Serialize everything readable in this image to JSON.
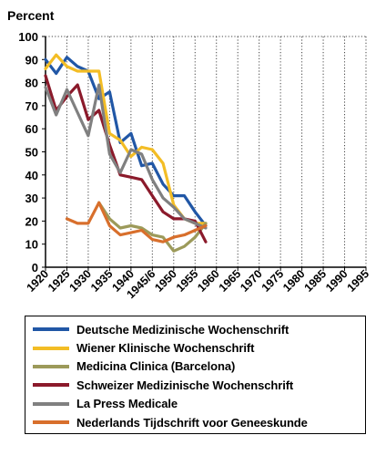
{
  "chart_data": {
    "type": "line",
    "ylabel": "Percent",
    "ylim": [
      0,
      100
    ],
    "y_ticks": [
      "0",
      "10",
      "20",
      "30",
      "40",
      "50",
      "60",
      "70",
      "80",
      "90",
      "100"
    ],
    "x": [
      1920,
      1925,
      1930,
      1935,
      1940,
      1945,
      1950,
      1955,
      1960,
      1965,
      1970,
      1975,
      1980,
      1985,
      1990,
      1995
    ],
    "x_tick_labels": [
      "1920",
      "1925",
      "1930",
      "1935",
      "1940",
      "1945/6",
      "1950",
      "1955",
      "1960",
      "1965",
      "1970",
      "1975",
      "1980",
      "1985",
      "1990",
      "1995"
    ],
    "grid": "vertical dotted",
    "legend_position": "bottom",
    "series": [
      {
        "name": "Deutsche Medizinische Wochenschrift",
        "color": "#2157a6",
        "points": [
          [
            1920,
            90
          ],
          [
            1922.5,
            84
          ],
          [
            1925,
            91
          ],
          [
            1927.5,
            87
          ],
          [
            1930,
            85
          ],
          [
            1932.5,
            73
          ],
          [
            1935,
            76
          ],
          [
            1937.5,
            54
          ],
          [
            1940,
            58
          ],
          [
            1942.5,
            44
          ],
          [
            1945,
            45
          ],
          [
            1947.5,
            36
          ],
          [
            1950,
            31
          ],
          [
            1952.5,
            31
          ],
          [
            1955,
            24
          ],
          [
            1957.5,
            18
          ]
        ]
      },
      {
        "name": "Wiener Klinische Wochenschrift",
        "color": "#f3bd25",
        "points": [
          [
            1920,
            86
          ],
          [
            1922.5,
            92
          ],
          [
            1925,
            87
          ],
          [
            1927.5,
            85
          ],
          [
            1930,
            85
          ],
          [
            1932.5,
            85
          ],
          [
            1935,
            58
          ],
          [
            1937.5,
            55
          ],
          [
            1940,
            48
          ],
          [
            1942.5,
            52
          ],
          [
            1945,
            51
          ],
          [
            1947.5,
            45
          ],
          [
            1950,
            27
          ],
          [
            1952.5,
            21
          ],
          [
            1955,
            19
          ],
          [
            1957.5,
            19
          ]
        ]
      },
      {
        "name": "Medicina Clinica (Barcelona)",
        "color": "#9c9a5a",
        "points": [
          [
            1932.5,
            28
          ],
          [
            1935,
            21
          ],
          [
            1937.5,
            17
          ],
          [
            1940,
            18
          ],
          [
            1942.5,
            17
          ],
          [
            1945,
            14
          ],
          [
            1947.5,
            13
          ],
          [
            1950,
            7
          ],
          [
            1952.5,
            9
          ],
          [
            1955,
            13
          ],
          [
            1957.5,
            19
          ]
        ]
      },
      {
        "name": "Schweizer Medizinische Wochenschrift",
        "color": "#8b1a2b",
        "points": [
          [
            1920,
            83
          ],
          [
            1922.5,
            68
          ],
          [
            1925,
            74
          ],
          [
            1927.5,
            79
          ],
          [
            1930,
            64
          ],
          [
            1932.5,
            68
          ],
          [
            1935,
            53
          ],
          [
            1937.5,
            40
          ],
          [
            1940,
            39
          ],
          [
            1942.5,
            38
          ],
          [
            1945,
            31
          ],
          [
            1947.5,
            24
          ],
          [
            1950,
            21
          ],
          [
            1952.5,
            21
          ],
          [
            1955,
            20
          ],
          [
            1957.5,
            11
          ]
        ]
      },
      {
        "name": "La Press Medicale",
        "color": "#808080",
        "points": [
          [
            1920,
            78
          ],
          [
            1922.5,
            66
          ],
          [
            1925,
            77
          ],
          [
            1927.5,
            67
          ],
          [
            1930,
            57
          ],
          [
            1932.5,
            79
          ],
          [
            1935,
            49
          ],
          [
            1937.5,
            41
          ],
          [
            1940,
            51
          ],
          [
            1942.5,
            49
          ],
          [
            1945,
            38
          ],
          [
            1947.5,
            30
          ],
          [
            1950,
            26
          ],
          [
            1952.5,
            21
          ],
          [
            1955,
            19
          ],
          [
            1957.5,
            17
          ]
        ]
      },
      {
        "name": "Nederlands Tijdschrift voor Geneeskunde",
        "color": "#d86f2c",
        "points": [
          [
            1925,
            21
          ],
          [
            1927.5,
            19
          ],
          [
            1930,
            19
          ],
          [
            1932.5,
            28
          ],
          [
            1935,
            18
          ],
          [
            1937.5,
            14
          ],
          [
            1940,
            15
          ],
          [
            1942.5,
            16
          ],
          [
            1945,
            12
          ],
          [
            1947.5,
            11
          ],
          [
            1950,
            13
          ],
          [
            1952.5,
            14
          ],
          [
            1955,
            16
          ],
          [
            1957.5,
            18
          ]
        ]
      }
    ]
  }
}
